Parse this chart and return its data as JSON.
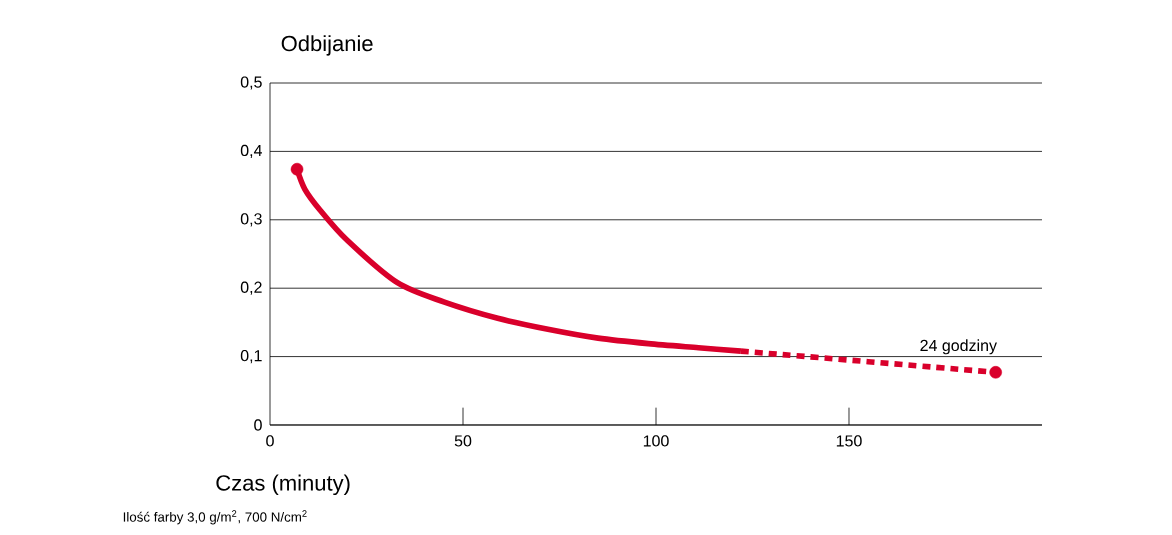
{
  "chart_data": {
    "type": "line",
    "ylabel": "Odbijanie",
    "xlabel": "Czas  (minuty)",
    "annotations": [
      {
        "text": "24 godziny",
        "x": 188,
        "y": 0.077
      },
      "Ilość farby 3,0 g/m$^{2}$, 700 N/cm$^{2}$"
    ],
    "series": [
      {
        "line_style": "solid",
        "color": "#d9002b",
        "x": [
          7,
          9,
          13,
          20,
          33,
          45,
          59,
          72,
          85,
          98,
          111,
          122
        ],
        "values": [
          0.374,
          0.345,
          0.314,
          0.27,
          0.208,
          0.18,
          0.156,
          0.14,
          0.127,
          0.119,
          0.113,
          0.108
        ]
      },
      {
        "line_style": "dashed",
        "color": "#d9002b",
        "x": [
          122,
          188
        ],
        "values": [
          0.108,
          0.077
        ]
      },
      {
        "type": "scatter",
        "marker": "circle",
        "color": "#d9002b",
        "x": [
          7,
          188
        ],
        "values": [
          0.374,
          0.077
        ]
      }
    ],
    "xlim": [
      0,
      200
    ],
    "ylim": [
      0,
      0.5
    ],
    "xticks": [
      0,
      50,
      100,
      150
    ],
    "yticks": [
      {
        "value": 0,
        "label": "0"
      },
      {
        "value": 0.1,
        "label": "0,1"
      },
      {
        "value": 0.2,
        "label": "0,2"
      },
      {
        "value": 0.3,
        "label": "0,3"
      },
      {
        "value": 0.4,
        "label": "0,4"
      },
      {
        "value": 0.5,
        "label": "0,5"
      }
    ],
    "grid": "y"
  }
}
